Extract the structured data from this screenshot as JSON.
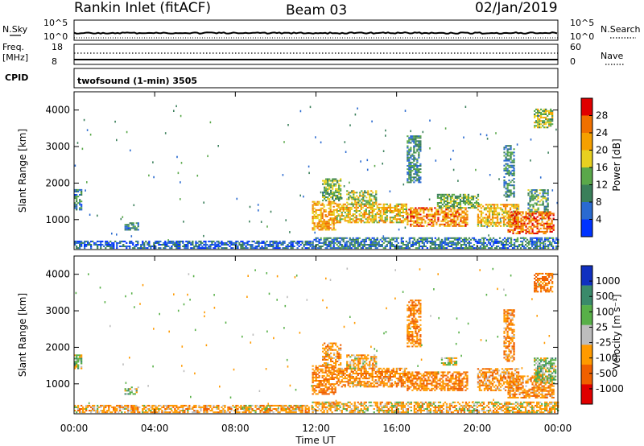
{
  "header": {
    "radar": "Rankin Inlet (fitACF)",
    "beam": "Beam 03",
    "date": "02/Jan/2019"
  },
  "strips": {
    "nsky": {
      "label": "N.Sky",
      "ticks": [
        "10^5",
        "10^0"
      ]
    },
    "nsearch": {
      "label": "N.Search",
      "ticks": [
        "10^5",
        "10^0"
      ]
    },
    "freq": {
      "label_line1": "Freq.",
      "label_line2": "[MHz]",
      "ticks": [
        "18",
        "8"
      ]
    },
    "nave": {
      "label": "Nave",
      "ticks": [
        "60",
        "0"
      ]
    },
    "cpid": {
      "label": "CPID",
      "text": "twofsound (1-min) 3505"
    }
  },
  "x_axis": {
    "label": "Time UT",
    "ticks": [
      "00:00",
      "04:00",
      "08:00",
      "12:00",
      "16:00",
      "20:00",
      "00:00"
    ],
    "range_hours": [
      0,
      24
    ]
  },
  "colors": {
    "power": [
      "#0033ff",
      "#2a6ad0",
      "#3a7f5a",
      "#5aa84a",
      "#e8d020",
      "#f5a000",
      "#f07000",
      "#e00000"
    ],
    "velocity": [
      "#1030c0",
      "#3a8a6a",
      "#58b048",
      "#bdbdbd",
      "#ff9a00",
      "#f06000",
      "#e00000"
    ]
  },
  "chart_data": [
    {
      "type": "heatmap",
      "name": "power",
      "ylabel": "Slant Range [km]",
      "yticks": [
        "4000",
        "3000",
        "2000",
        "1000"
      ],
      "ylim": [
        180,
        4500
      ],
      "xlim": [
        0,
        24
      ],
      "colorbar": {
        "label": "Power [dB]",
        "ticks": [
          "28",
          "24",
          "20",
          "16",
          "12",
          "8",
          "4"
        ],
        "range": [
          0,
          32
        ]
      },
      "regions": [
        {
          "t": [
            0.0,
            0.4
          ],
          "r": [
            1250,
            1800
          ],
          "level": 9
        },
        {
          "t": [
            0.0,
            11.8
          ],
          "r": [
            200,
            400
          ],
          "level": 6
        },
        {
          "t": [
            2.5,
            3.2
          ],
          "r": [
            700,
            900
          ],
          "level": 9
        },
        {
          "t": [
            11.8,
            13.0
          ],
          "r": [
            700,
            1500
          ],
          "level": 22
        },
        {
          "t": [
            12.3,
            13.2
          ],
          "r": [
            1500,
            2100
          ],
          "level": 14
        },
        {
          "t": [
            13.0,
            16.5
          ],
          "r": [
            900,
            1400
          ],
          "level": 20
        },
        {
          "t": [
            13.5,
            15.0
          ],
          "r": [
            1400,
            1800
          ],
          "level": 16
        },
        {
          "t": [
            16.5,
            19.5
          ],
          "r": [
            800,
            1300
          ],
          "level": 24
        },
        {
          "t": [
            18.0,
            20.0
          ],
          "r": [
            1300,
            1700
          ],
          "level": 14
        },
        {
          "t": [
            20.0,
            22.0
          ],
          "r": [
            800,
            1400
          ],
          "level": 20
        },
        {
          "t": [
            21.5,
            23.8
          ],
          "r": [
            600,
            1200
          ],
          "level": 26
        },
        {
          "t": [
            22.5,
            23.5
          ],
          "r": [
            1200,
            1800
          ],
          "level": 12
        },
        {
          "t": [
            16.5,
            17.2
          ],
          "r": [
            2000,
            3300
          ],
          "level": 10
        },
        {
          "t": [
            21.3,
            21.8
          ],
          "r": [
            1600,
            3000
          ],
          "level": 10
        },
        {
          "t": [
            22.8,
            23.7
          ],
          "r": [
            3500,
            4000
          ],
          "level": 16
        },
        {
          "t": [
            11.8,
            24.0
          ],
          "r": [
            200,
            500
          ],
          "level": 8
        }
      ]
    },
    {
      "type": "heatmap",
      "name": "velocity",
      "ylabel": "Slant Range [km]",
      "yticks": [
        "4000",
        "3000",
        "2000",
        "1000"
      ],
      "ylim": [
        180,
        4500
      ],
      "xlim": [
        0,
        24
      ],
      "colorbar": {
        "label": "Velocity [m s⁻¹]",
        "ticks": [
          "1000",
          "500",
          "100",
          "25",
          "-25",
          "-100",
          "-500",
          "-1000"
        ],
        "range": [
          -1500,
          1500
        ]
      },
      "regions": [
        {
          "t": [
            0.0,
            0.4
          ],
          "r": [
            1400,
            1800
          ],
          "level": 120
        },
        {
          "t": [
            0.0,
            11.8
          ],
          "r": [
            200,
            400
          ],
          "level": -150
        },
        {
          "t": [
            2.5,
            3.2
          ],
          "r": [
            700,
            900
          ],
          "level": 200
        },
        {
          "t": [
            11.8,
            13.0
          ],
          "r": [
            700,
            1500
          ],
          "level": -300
        },
        {
          "t": [
            12.3,
            13.2
          ],
          "r": [
            1500,
            2100
          ],
          "level": -200
        },
        {
          "t": [
            13.0,
            16.5
          ],
          "r": [
            900,
            1400
          ],
          "level": -250
        },
        {
          "t": [
            13.5,
            15.0
          ],
          "r": [
            1400,
            1800
          ],
          "level": -150
        },
        {
          "t": [
            16.5,
            19.5
          ],
          "r": [
            800,
            1300
          ],
          "level": -300
        },
        {
          "t": [
            18.2,
            19.0
          ],
          "r": [
            1500,
            1700
          ],
          "level": 0
        },
        {
          "t": [
            20.0,
            22.0
          ],
          "r": [
            800,
            1400
          ],
          "level": -200
        },
        {
          "t": [
            21.5,
            23.8
          ],
          "r": [
            600,
            1200
          ],
          "level": -250
        },
        {
          "t": [
            22.8,
            23.9
          ],
          "r": [
            1000,
            1700
          ],
          "level": 150
        },
        {
          "t": [
            16.5,
            17.2
          ],
          "r": [
            2000,
            3300
          ],
          "level": -300
        },
        {
          "t": [
            21.3,
            21.8
          ],
          "r": [
            1600,
            3000
          ],
          "level": -250
        },
        {
          "t": [
            22.8,
            23.7
          ],
          "r": [
            3500,
            4000
          ],
          "level": -400
        },
        {
          "t": [
            11.8,
            24.0
          ],
          "r": [
            200,
            500
          ],
          "level": -100
        }
      ]
    }
  ]
}
